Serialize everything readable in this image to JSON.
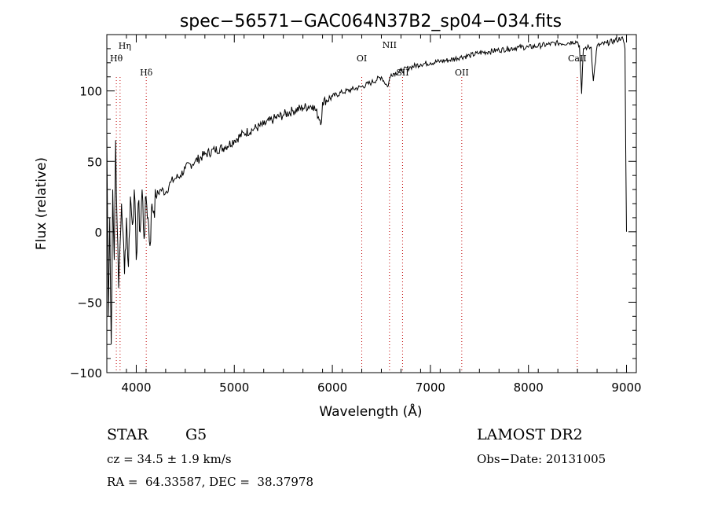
{
  "chart_data": {
    "type": "line",
    "title": "spec−56571−GAC064N37B2_sp04−034.fits",
    "xlabel": "Wavelength (Å)",
    "ylabel": "Flux (relative)",
    "xlim": [
      3700,
      9100
    ],
    "ylim": [
      -100,
      140
    ],
    "x_ticks": [
      4000,
      5000,
      6000,
      7000,
      8000,
      9000
    ],
    "x_tick_labels": [
      "4000",
      "5000",
      "6000",
      "7000",
      "8000",
      "9000"
    ],
    "y_ticks": [
      -100,
      -50,
      0,
      50,
      100
    ],
    "y_tick_labels": [
      "−100",
      "−50",
      "0",
      "50",
      "100"
    ],
    "grid": false,
    "series": [
      {
        "x": [
          3700,
          3715,
          3730,
          3745,
          3760,
          3775,
          3790,
          3805,
          3820,
          3835,
          3850,
          3865,
          3880,
          3900,
          3920,
          3940,
          3960,
          3980,
          4000,
          4020,
          4040,
          4060,
          4080,
          4100,
          4120,
          4140,
          4160,
          4180,
          4200,
          4250,
          4300,
          4350,
          4400,
          4450,
          4500,
          4600,
          4700,
          4800,
          4900,
          5000,
          5100,
          5200,
          5300,
          5400,
          5500,
          5600,
          5700,
          5800,
          5890,
          5900,
          6000,
          6100,
          6200,
          6300,
          6400,
          6500,
          6563,
          6600,
          6700,
          6800,
          6900,
          7000,
          7100,
          7200,
          7300,
          7400,
          7500,
          7600,
          7700,
          7800,
          7900,
          8000,
          8100,
          8200,
          8300,
          8400,
          8450,
          8498,
          8520,
          8542,
          8560,
          8600,
          8640,
          8662,
          8700,
          8800,
          8900,
          8950,
          8970,
          8985,
          8992,
          9000
        ],
        "y": [
          70,
          -60,
          10,
          -80,
          30,
          -20,
          65,
          5,
          -40,
          -10,
          20,
          0,
          -30,
          10,
          -25,
          25,
          5,
          30,
          -20,
          20,
          0,
          30,
          -5,
          25,
          10,
          -10,
          20,
          15,
          25,
          30,
          28,
          35,
          38,
          40,
          45,
          50,
          55,
          58,
          60,
          65,
          70,
          73,
          76,
          80,
          83,
          86,
          88,
          90,
          78,
          92,
          96,
          99,
          101,
          103,
          106,
          110,
          103,
          112,
          114,
          117,
          119,
          120,
          121,
          122,
          124,
          125,
          127,
          128,
          129,
          130,
          131,
          131,
          132,
          133,
          134,
          134,
          135,
          135,
          132,
          98,
          130,
          131,
          131,
          107,
          132,
          134,
          136,
          138,
          135,
          130,
          60,
          0
        ]
      }
    ],
    "annotations": [
      {
        "label": "Hη",
        "x": 3835
      },
      {
        "label": "Hθ",
        "x": 3797
      },
      {
        "label": "Hδ",
        "x": 4102
      },
      {
        "label": "OI",
        "x": 6300
      },
      {
        "label": "NII",
        "x": 6583
      },
      {
        "label": "SII",
        "x": 6716
      },
      {
        "label": "OII",
        "x": 7320
      },
      {
        "label": "CaII",
        "x": 8498
      }
    ]
  },
  "info": {
    "object_type": "STAR",
    "subclass": "G5",
    "survey": "LAMOST DR2",
    "cz": "cz = 34.5 ± 1.9 km/s",
    "obs_date": "Obs−Date: 20131005",
    "coords": "RA =  64.33587, DEC =  38.37978"
  }
}
